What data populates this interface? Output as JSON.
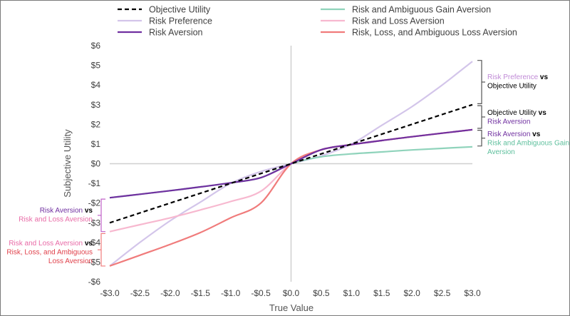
{
  "chart_data": {
    "type": "line",
    "title": "",
    "xlabel": "True Value",
    "ylabel": "Subjective Utility",
    "xlim": [
      -3.0,
      3.0
    ],
    "ylim": [
      -6,
      6
    ],
    "grid": false,
    "legend_position": "top",
    "x_ticks": [
      "-$3.0",
      "-$2.5",
      "-$2.0",
      "-$1.5",
      "-$1.0",
      "-$0.5",
      "$0.0",
      "$0.5",
      "$1.0",
      "$1.5",
      "$2.0",
      "$2.5",
      "$3.0"
    ],
    "y_ticks": [
      "$6",
      "$5",
      "$4",
      "$3",
      "$2",
      "$1",
      "$0",
      "-$1",
      "-$2",
      "-$3",
      "-$4",
      "-$5",
      "-$6"
    ],
    "x": [
      -3.0,
      -2.5,
      -2.0,
      -1.5,
      -1.0,
      -0.5,
      0.0,
      0.5,
      1.0,
      1.5,
      2.0,
      2.5,
      3.0
    ],
    "series": [
      {
        "name": "Objective Utility",
        "color": "#000000",
        "dash": true,
        "values": [
          -3.0,
          -2.5,
          -2.0,
          -1.5,
          -1.0,
          -0.5,
          0.0,
          0.5,
          1.0,
          1.5,
          2.0,
          2.5,
          3.0
        ]
      },
      {
        "name": "Risk Preference",
        "color": "#d3c5ea",
        "values": [
          -5.2,
          -4.0,
          -2.9,
          -1.95,
          -1.0,
          -0.4,
          0.0,
          0.4,
          1.0,
          1.95,
          2.9,
          4.0,
          5.2
        ]
      },
      {
        "name": "Risk Aversion",
        "color": "#7030a0",
        "values": [
          -1.73,
          -1.55,
          -1.37,
          -1.18,
          -0.97,
          -0.71,
          0.0,
          0.71,
          0.97,
          1.18,
          1.37,
          1.55,
          1.73
        ]
      },
      {
        "name": "Risk and Ambiguous Gain Aversion",
        "color": "#8fd3bb",
        "values": [
          -1.73,
          -1.55,
          -1.37,
          -1.18,
          -0.97,
          -0.71,
          0.0,
          0.35,
          0.5,
          0.6,
          0.7,
          0.78,
          0.86
        ]
      },
      {
        "name": "Risk and Loss Aversion",
        "color": "#f7b8cf",
        "values": [
          -3.45,
          -3.1,
          -2.75,
          -2.35,
          -1.92,
          -1.4,
          0.0,
          0.71,
          0.97,
          1.18,
          1.37,
          1.55,
          1.73
        ]
      },
      {
        "name": "Risk, Loss, and Ambiguous Loss Aversion",
        "color": "#f07b7b",
        "values": [
          -5.2,
          -4.65,
          -4.1,
          -3.5,
          -2.75,
          -2.0,
          0.0,
          0.71,
          0.97,
          1.18,
          1.37,
          1.55,
          1.73
        ]
      }
    ],
    "annotations": [
      {
        "id": "rp-ou",
        "parts": [
          {
            "lines": [
              {
                "text": "Risk Preference",
                "color": "#c08ad6"
              },
              {
                "text": " vs",
                "color": "#000000",
                "bold": true
              }
            ]
          },
          {
            "lines": [
              {
                "text": "Objective Utility",
                "color": "#000000"
              }
            ]
          }
        ]
      },
      {
        "id": "ou-ra",
        "parts": [
          {
            "lines": [
              {
                "text": "Objective Utility",
                "color": "#000000"
              },
              {
                "text": " vs",
                "color": "#000000",
                "bold": true
              }
            ]
          },
          {
            "lines": [
              {
                "text": "Risk Aversion",
                "color": "#7030a0"
              }
            ]
          }
        ]
      },
      {
        "id": "ra-ragav",
        "parts": [
          {
            "lines": [
              {
                "text": "Risk Aversion",
                "color": "#7030a0"
              },
              {
                "text": " vs",
                "color": "#000000",
                "bold": true
              }
            ]
          },
          {
            "lines": [
              {
                "text": "Risk and Ambiguous Gain",
                "color": "#5dbf9c"
              }
            ]
          },
          {
            "lines": [
              {
                "text": "Aversion",
                "color": "#5dbf9c"
              }
            ]
          }
        ]
      },
      {
        "id": "ra-rla",
        "parts": [
          {
            "lines": [
              {
                "text": "Risk Aversion",
                "color": "#7030a0"
              },
              {
                "text": " vs",
                "color": "#000000",
                "bold": true
              }
            ]
          },
          {
            "lines": [
              {
                "text": "Risk and Loss Aversion",
                "color": "#e86aa6"
              }
            ]
          }
        ]
      },
      {
        "id": "rla-rlala",
        "parts": [
          {
            "lines": [
              {
                "text": "Risk and Loss Aversion",
                "color": "#e86aa6"
              },
              {
                "text": " vs",
                "color": "#000000",
                "bold": true
              }
            ]
          },
          {
            "lines": [
              {
                "text": "Risk, Loss, and Ambiguous",
                "color": "#e0404a"
              }
            ]
          },
          {
            "lines": [
              {
                "text": "Loss Aversion",
                "color": "#e0404a"
              }
            ]
          }
        ]
      }
    ]
  }
}
